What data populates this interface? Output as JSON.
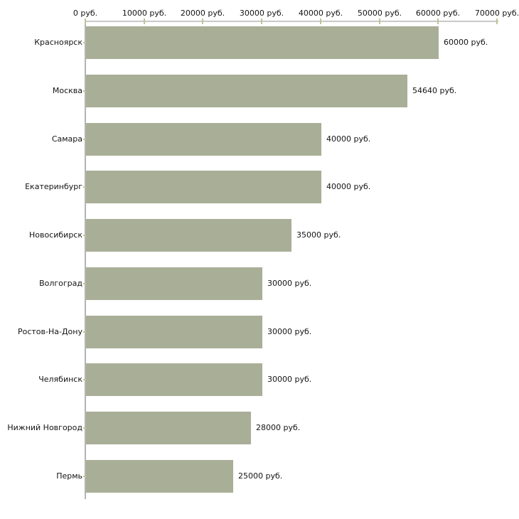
{
  "chart_data": {
    "type": "bar",
    "orientation": "horizontal",
    "title": "",
    "xlabel": "",
    "ylabel": "",
    "categories": [
      "Красноярск",
      "Москва",
      "Самара",
      "Екатеринбург",
      "Новосибирск",
      "Волгоград",
      "Ростов-На-Дону",
      "Челябинск",
      "Нижний Новгород",
      "Пермь"
    ],
    "values": [
      60000,
      54640,
      40000,
      40000,
      35000,
      30000,
      30000,
      30000,
      28000,
      25000
    ],
    "data_labels": [
      "60000 руб.",
      "54640 руб.",
      "40000 руб.",
      "40000 руб.",
      "35000 руб.",
      "30000 руб.",
      "30000 руб.",
      "30000 руб.",
      "28000 руб.",
      "25000 руб."
    ],
    "x_tick_labels": [
      "0 руб.",
      "10000 руб.",
      "20000 руб.",
      "30000 руб.",
      "40000 руб.",
      "50000 руб.",
      "60000 руб.",
      "70000 руб."
    ],
    "xlim": [
      0,
      70000
    ],
    "x_step": 10000,
    "unit": "руб.",
    "grid": false,
    "legend": "none",
    "colors": {
      "bar": "#a9af97",
      "x_axis_line": "#c9c9c9",
      "y_axis_line": "#b3b3b3",
      "tick": "#c2c29a",
      "text": "#141414",
      "background": "#ffffff"
    }
  }
}
